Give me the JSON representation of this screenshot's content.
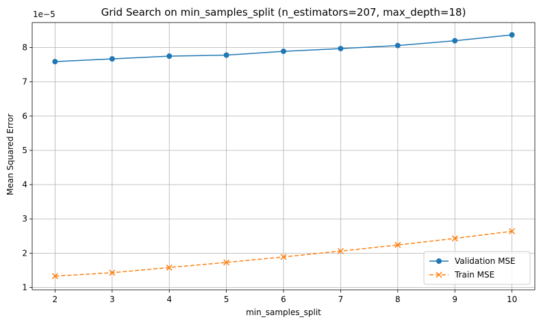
{
  "chart_data": {
    "type": "line",
    "title": "Grid Search on min_samples_split (n_estimators=207, max_depth=18)",
    "xlabel": "min_samples_split",
    "ylabel": "Mean Squared Error",
    "y_scale_label": "1e−5",
    "x": [
      2,
      3,
      4,
      5,
      6,
      7,
      8,
      9,
      10
    ],
    "x_ticks": [
      "2",
      "3",
      "4",
      "5",
      "6",
      "7",
      "8",
      "9",
      "10"
    ],
    "xlim": [
      1.6,
      10.4
    ],
    "y_ticks": [
      "1",
      "2",
      "3",
      "4",
      "5",
      "6",
      "7",
      "8"
    ],
    "y_tick_values": [
      1,
      2,
      3,
      4,
      5,
      6,
      7,
      8
    ],
    "ylim": [
      0.93,
      8.73
    ],
    "grid": true,
    "legend_position": "lower-right",
    "series": [
      {
        "name": "Validation MSE",
        "values": [
          7.59,
          7.67,
          7.75,
          7.78,
          7.89,
          7.97,
          8.06,
          8.2,
          8.37
        ],
        "color": "#1f77b4",
        "marker": "circle",
        "linestyle": "solid"
      },
      {
        "name": "Train MSE",
        "values": [
          1.33,
          1.43,
          1.58,
          1.73,
          1.89,
          2.06,
          2.24,
          2.43,
          2.64
        ],
        "color": "#ff7f0e",
        "marker": "x",
        "linestyle": "dashed"
      }
    ]
  }
}
